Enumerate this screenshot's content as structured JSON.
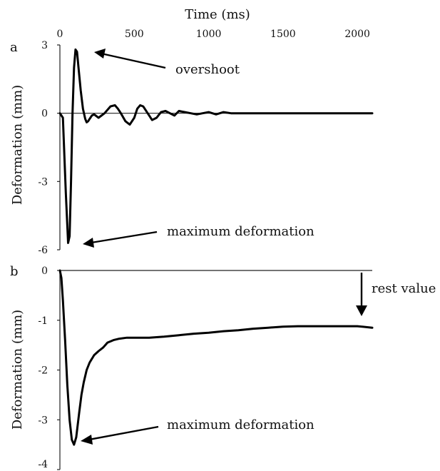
{
  "chart_data": [
    {
      "panel": "a",
      "type": "line",
      "xlabel": "Time (ms)",
      "ylabel": "Deformation (mm)",
      "xlim": [
        0,
        2100
      ],
      "ylim": [
        -6,
        3
      ],
      "xticks": [
        0,
        500,
        1000,
        1500,
        2000
      ],
      "yticks": [
        3,
        0,
        -3,
        -6
      ],
      "grid": false,
      "series": [
        {
          "x": [
            0,
            20,
            40,
            55,
            65,
            75,
            85,
            95,
            105,
            115,
            125,
            140,
            155,
            170,
            180,
            190,
            200,
            215,
            230,
            260,
            300,
            340,
            370,
            390,
            410,
            440,
            470,
            500,
            520,
            540,
            560,
            590,
            620,
            650,
            680,
            710,
            740,
            770,
            800,
            840,
            880,
            920,
            960,
            1000,
            1050,
            1100,
            1150,
            1200,
            1300,
            1400,
            1500,
            1600,
            1700,
            1800,
            1900,
            2000,
            2100
          ],
          "y": [
            0,
            -0.2,
            -3.5,
            -5.7,
            -5.4,
            -3,
            0,
            2,
            2.8,
            2.7,
            2,
            1,
            0.2,
            -0.25,
            -0.4,
            -0.35,
            -0.25,
            -0.1,
            -0.05,
            -0.2,
            0,
            0.3,
            0.35,
            0.2,
            0,
            -0.35,
            -0.5,
            -0.2,
            0.2,
            0.35,
            0.3,
            0,
            -0.3,
            -0.2,
            0.05,
            0.1,
            0,
            -0.1,
            0.1,
            0.05,
            0,
            -0.05,
            0,
            0.05,
            -0.05,
            0.05,
            0,
            0,
            0,
            0,
            0,
            0,
            0,
            0,
            0,
            0,
            0
          ]
        }
      ],
      "annotations": [
        "overshoot",
        "maximum deformation"
      ]
    },
    {
      "panel": "b",
      "type": "line",
      "xlabel": "",
      "ylabel": "Deformation (mm)",
      "xlim": [
        0,
        2100
      ],
      "ylim": [
        -4,
        0
      ],
      "yticks": [
        0,
        -1,
        -2,
        -3,
        -4
      ],
      "grid": false,
      "series": [
        {
          "x": [
            0,
            10,
            20,
            35,
            50,
            65,
            80,
            95,
            110,
            120,
            130,
            145,
            160,
            180,
            200,
            230,
            260,
            290,
            320,
            360,
            400,
            450,
            500,
            550,
            600,
            700,
            800,
            900,
            1000,
            1100,
            1200,
            1300,
            1400,
            1500,
            1600,
            1700,
            1800,
            1900,
            2000,
            2100
          ],
          "y": [
            0,
            -0.15,
            -0.6,
            -1.4,
            -2.3,
            -3,
            -3.4,
            -3.5,
            -3.35,
            -3.1,
            -2.85,
            -2.5,
            -2.25,
            -2.0,
            -1.85,
            -1.7,
            -1.62,
            -1.55,
            -1.45,
            -1.4,
            -1.37,
            -1.35,
            -1.35,
            -1.35,
            -1.35,
            -1.33,
            -1.3,
            -1.27,
            -1.25,
            -1.22,
            -1.2,
            -1.17,
            -1.15,
            -1.13,
            -1.12,
            -1.12,
            -1.12,
            -1.12,
            -1.12,
            -1.15
          ]
        }
      ],
      "annotations": [
        "maximum deformation",
        "rest value"
      ]
    }
  ],
  "figure": {
    "top_label": "Time (ms)",
    "panel_a": {
      "letter": "a",
      "ylabel": "Deformation (mm)",
      "annot_overshoot": "overshoot",
      "annot_max": "maximum deformation"
    },
    "panel_b": {
      "letter": "b",
      "ylabel": "Deformation (mm)",
      "annot_max": "maximum deformation",
      "annot_rest": "rest value"
    }
  }
}
